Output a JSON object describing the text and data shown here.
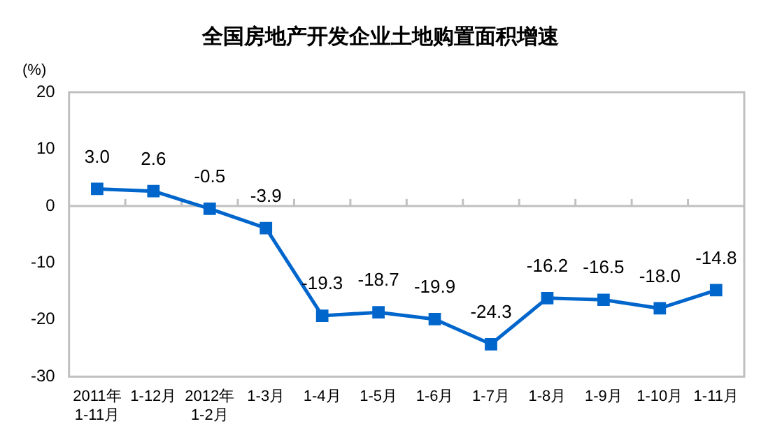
{
  "chart_data": {
    "type": "line",
    "title": "全国房地产开发企业土地购置面积增速",
    "ylabel": "(%)",
    "categories": [
      "2011年\n1-11月",
      "1-12月",
      "2012年\n1-2月",
      "1-3月",
      "1-4月",
      "1-5月",
      "1-6月",
      "1-7月",
      "1-8月",
      "1-9月",
      "1-10月",
      "1-11月"
    ],
    "series": [
      {
        "color": "#0066cc",
        "values": [
          3.0,
          2.6,
          -0.5,
          -3.9,
          -19.3,
          -18.7,
          -19.9,
          -24.3,
          -16.2,
          -16.5,
          -18.0,
          -14.8
        ],
        "value_labels": [
          "3.0",
          "2.6",
          "-0.5",
          "-3.9",
          "-19.3",
          "-18.7",
          "-19.9",
          "-24.3",
          "-16.2",
          "-16.5",
          "-18.0",
          "-14.8"
        ]
      }
    ],
    "ylim": [
      -30,
      20
    ],
    "yticks": [
      -30,
      -20,
      -10,
      0,
      10,
      20
    ],
    "ref_lines": [
      {
        "axis": "y",
        "value": 0,
        "color": "#c0c0c0"
      }
    ],
    "grid": false,
    "legend": false,
    "marker": "square",
    "line_style": "solid"
  }
}
